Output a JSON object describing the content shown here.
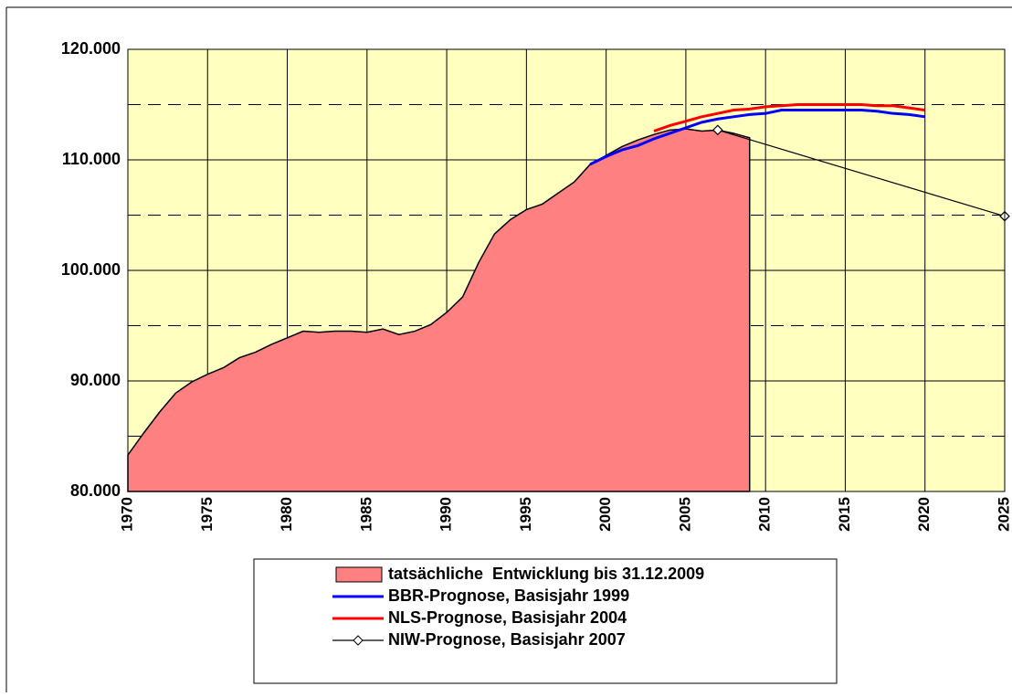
{
  "chart_data": {
    "type": "line",
    "xlim": [
      1970,
      2025
    ],
    "xticks": [
      1970,
      1975,
      1980,
      1985,
      1990,
      1995,
      2000,
      2005,
      2010,
      2015,
      2020,
      2025
    ],
    "ylim": [
      80000,
      120000
    ],
    "yticks": [
      {
        "value": 80000,
        "label": "80.000"
      },
      {
        "value": 90000,
        "label": "90.000"
      },
      {
        "value": 100000,
        "label": "100.000"
      },
      {
        "value": 110000,
        "label": "110.000"
      },
      {
        "value": 120000,
        "label": "120.000"
      }
    ],
    "yminorticks": [
      85000,
      95000,
      105000,
      115000
    ],
    "grid": true,
    "series": [
      {
        "name": "tatsächliche  Entwicklung bis 31.12.2009",
        "type": "area",
        "color": "#ff8080",
        "x": [
          1970,
          1971,
          1972,
          1973,
          1974,
          1975,
          1976,
          1977,
          1978,
          1979,
          1980,
          1981,
          1982,
          1983,
          1984,
          1985,
          1986,
          1987,
          1988,
          1989,
          1990,
          1991,
          1992,
          1993,
          1994,
          1995,
          1996,
          1997,
          1998,
          1999,
          2000,
          2001,
          2002,
          2003,
          2004,
          2005,
          2006,
          2007,
          2008,
          2009
        ],
        "values": [
          83300,
          85300,
          87200,
          88900,
          89900,
          90600,
          91200,
          92100,
          92600,
          93300,
          93900,
          94500,
          94400,
          94500,
          94500,
          94400,
          94700,
          94200,
          94500,
          95100,
          96200,
          97600,
          100700,
          103300,
          104600,
          105500,
          106000,
          107000,
          108000,
          109600,
          110400,
          111200,
          111800,
          112300,
          112700,
          112800,
          112600,
          112700,
          112400,
          112000
        ]
      },
      {
        "name": "BBR-Prognose, Basisjahr 1999",
        "type": "line",
        "color": "#0000ff",
        "x": [
          1999,
          2000,
          2001,
          2002,
          2003,
          2004,
          2005,
          2006,
          2007,
          2008,
          2009,
          2010,
          2011,
          2012,
          2013,
          2014,
          2015,
          2016,
          2017,
          2018,
          2019,
          2020
        ],
        "values": [
          109600,
          110300,
          110900,
          111300,
          111900,
          112400,
          112900,
          113400,
          113700,
          113900,
          114100,
          114200,
          114500,
          114500,
          114500,
          114500,
          114500,
          114500,
          114400,
          114200,
          114100,
          113900
        ]
      },
      {
        "name": "NLS-Prognose, Basisjahr 2004",
        "type": "line",
        "color": "#ff0000",
        "x": [
          2003,
          2004,
          2005,
          2006,
          2007,
          2008,
          2009,
          2010,
          2011,
          2012,
          2013,
          2014,
          2015,
          2016,
          2017,
          2018,
          2019,
          2020
        ],
        "values": [
          112600,
          113100,
          113500,
          113900,
          114200,
          114500,
          114600,
          114800,
          114900,
          115000,
          115000,
          115000,
          115000,
          115000,
          114900,
          114900,
          114700,
          114500
        ]
      },
      {
        "name": "NIW-Prognose, Basisjahr 2007",
        "type": "marker-line",
        "color": "#000000",
        "x": [
          2007,
          2025
        ],
        "values": [
          112700,
          104900
        ]
      }
    ]
  }
}
